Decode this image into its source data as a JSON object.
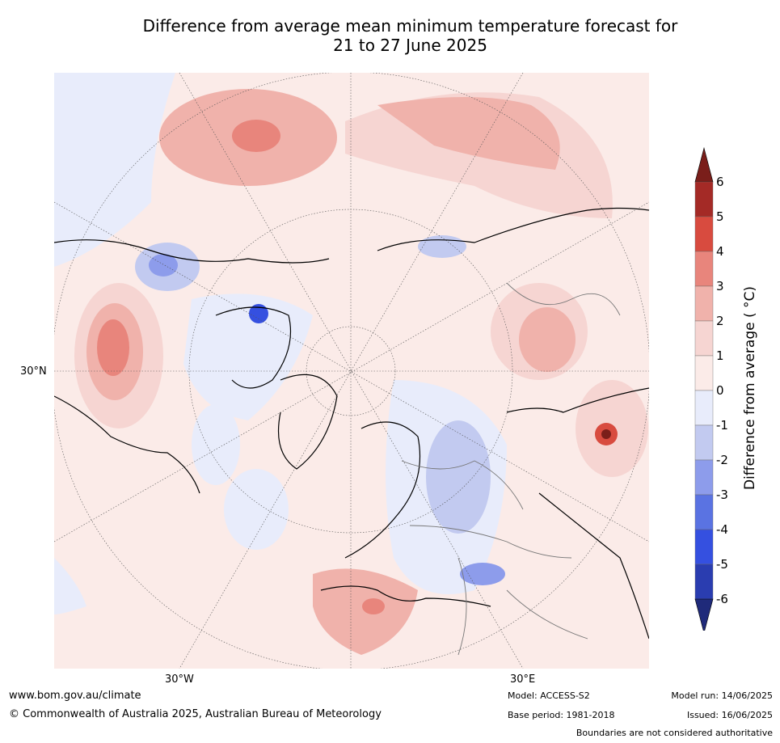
{
  "title_line1": "Difference from average mean minimum temperature forecast for",
  "title_line2": "21 to 27 June 2025",
  "axis_labels": {
    "lat_30n": "30°N",
    "lon_30w": "30°W",
    "lon_30e": "30°E"
  },
  "colorbar": {
    "label": "Difference from average ( °C)",
    "ticks": [
      "6",
      "5",
      "4",
      "3",
      "2",
      "1",
      "0",
      "-1",
      "-2",
      "-3",
      "-4",
      "-5",
      "-6"
    ],
    "colors": [
      "#a42a26",
      "#d84b3f",
      "#e8857c",
      "#f0b2ab",
      "#f6d5d2",
      "#fbebe8",
      "#e8ecfb",
      "#c2caf0",
      "#8d9ceb",
      "#5a73e2",
      "#3550e0",
      "#2a3db0"
    ],
    "over_color": "#7a1e1a",
    "under_color": "#1f2a7a"
  },
  "footer": {
    "website": "www.bom.gov.au/climate",
    "copyright": "© Commonwealth of Australia 2025, Australian Bureau of Meteorology",
    "model": "Model: ACCESS-S2",
    "base_period": "Base period: 1981-2018",
    "model_run": "Model run: 14/06/2025",
    "issued": "Issued: 16/06/2025",
    "boundaries_note": "Boundaries are not considered authoritative"
  }
}
